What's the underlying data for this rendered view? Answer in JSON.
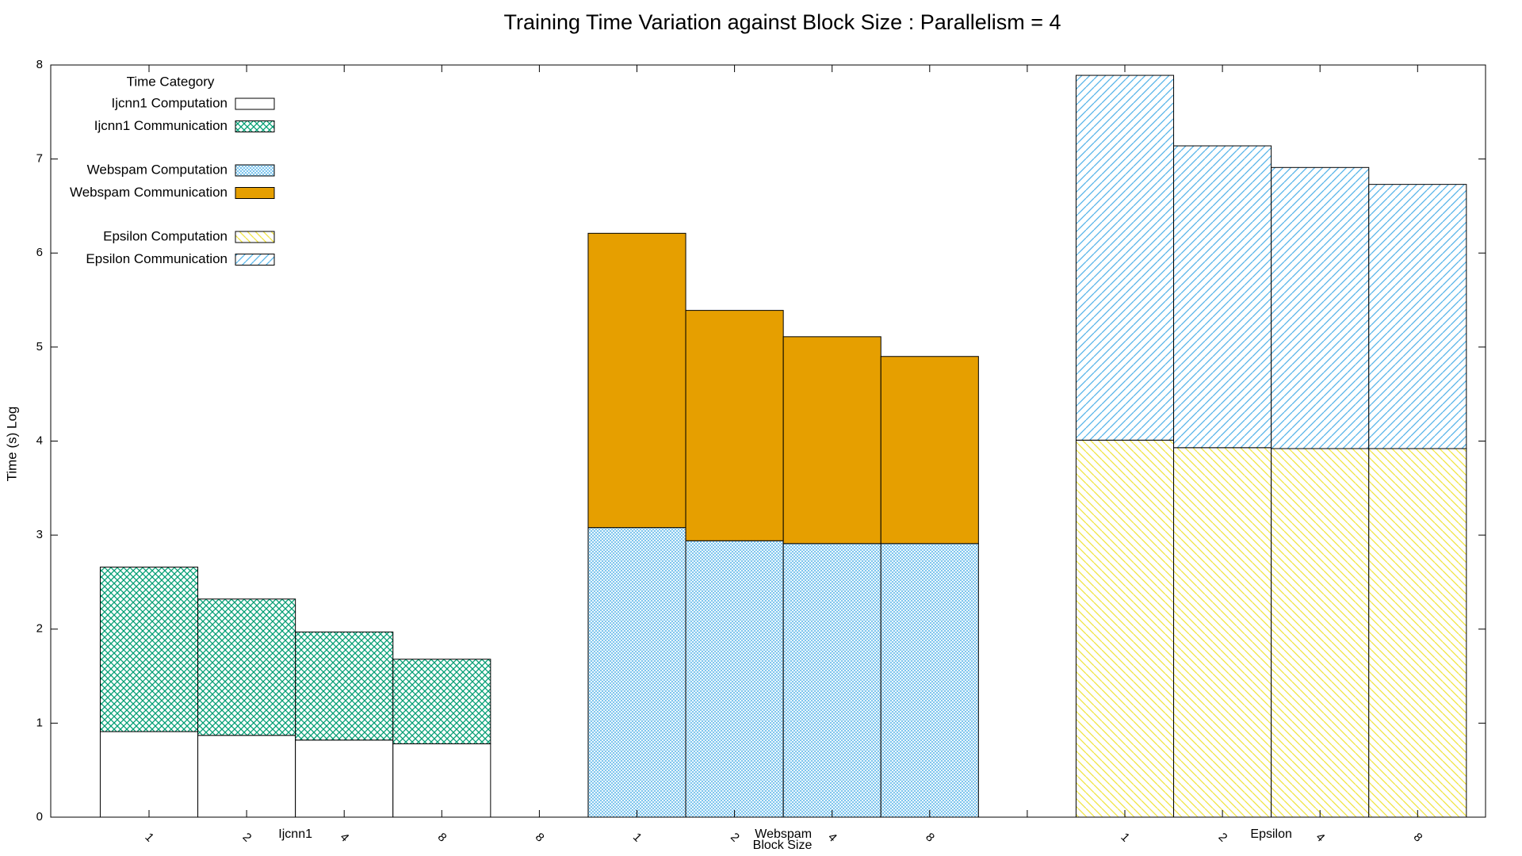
{
  "chart_data": {
    "type": "stacked-bar",
    "title": "Training Time Variation against Block Size : Parallelism = 4",
    "x_label": "Block Size",
    "y_label": "Time (s) Log",
    "legend_title": "Time Category",
    "legend_position": "top-left",
    "groups": [
      "Ijcnn1",
      "Webspam",
      "Epsilon"
    ],
    "categories": [
      "1",
      "2",
      "4",
      "8",
      "8",
      "1",
      "2",
      "4",
      "8",
      null,
      "1",
      "2",
      "4",
      "8"
    ],
    "series": [
      {
        "name": "Ijcnn1 Computation",
        "color": "#ffffff",
        "pattern": "none",
        "values": [
          0.91,
          0.87,
          0.82,
          0.78,
          null,
          null,
          null,
          null,
          null,
          null,
          null,
          null,
          null,
          null
        ]
      },
      {
        "name": "Ijcnn1 Communication",
        "color": "#009e73",
        "pattern": "crosshatch",
        "values": [
          1.75,
          1.45,
          1.15,
          0.9,
          null,
          null,
          null,
          null,
          null,
          null,
          null,
          null,
          null,
          null
        ]
      },
      {
        "name": "Webspam Computation",
        "color": "#56b4e9",
        "pattern": "fine-crosshatch",
        "values": [
          null,
          null,
          null,
          null,
          null,
          3.08,
          2.94,
          2.91,
          2.91,
          null,
          null,
          null,
          null,
          null
        ]
      },
      {
        "name": "Webspam Communication",
        "color": "#e69f00",
        "pattern": "solid",
        "values": [
          null,
          null,
          null,
          null,
          null,
          3.13,
          2.45,
          2.2,
          1.99,
          null,
          null,
          null,
          null,
          null
        ]
      },
      {
        "name": "Epsilon Computation",
        "color": "#f0e442",
        "pattern": "diagonal-down",
        "values": [
          null,
          null,
          null,
          null,
          null,
          null,
          null,
          null,
          null,
          null,
          4.01,
          3.93,
          3.92,
          3.92
        ]
      },
      {
        "name": "Epsilon Communication",
        "color": "#56b4e9",
        "pattern": "diagonal-up",
        "values": [
          null,
          null,
          null,
          null,
          null,
          null,
          null,
          null,
          null,
          null,
          3.88,
          3.21,
          2.99,
          2.81
        ]
      }
    ],
    "ylim": [
      0,
      8
    ],
    "yticks": [
      0,
      1,
      2,
      3,
      4,
      5,
      6,
      7,
      8
    ],
    "grid": false
  }
}
